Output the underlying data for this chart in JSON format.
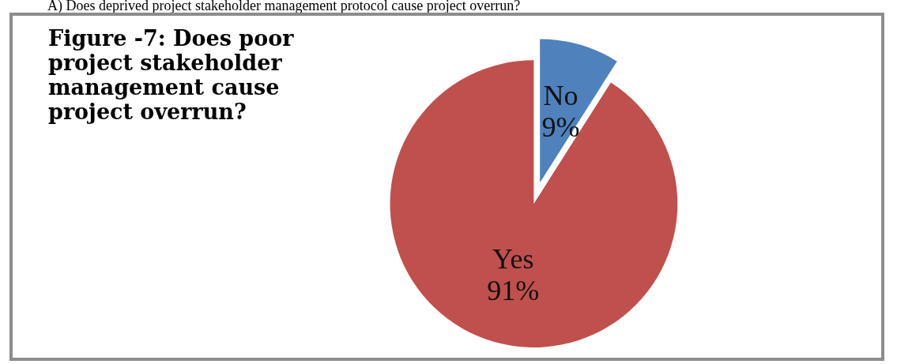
{
  "chart_data": {
    "type": "pie",
    "title": "Figure -7: Does poor project stakeholder management cause project overrun?",
    "annotations": [
      "A)  Does deprived project stakeholder management protocol cause project overrun?"
    ],
    "categories": [
      "No",
      "Yes"
    ],
    "values": [
      9,
      91
    ],
    "colors": [
      "#4f81bd",
      "#c0504d"
    ],
    "value_labels": [
      "9%",
      "91%"
    ],
    "legend": false
  }
}
